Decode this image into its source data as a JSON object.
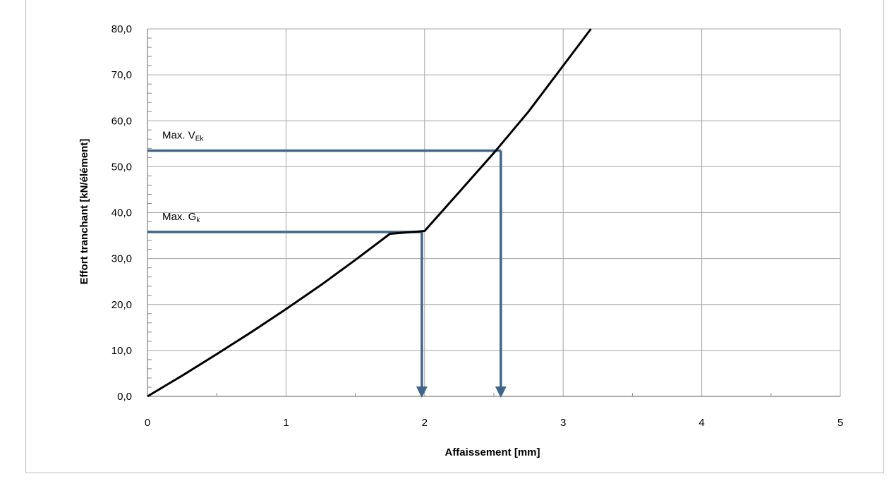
{
  "chart_data": {
    "type": "line",
    "title": "",
    "xlabel": "Affaissement [mm]",
    "ylabel": "Effort tranchant [kN/élément]",
    "xlim": [
      0,
      5
    ],
    "ylim": [
      0,
      80
    ],
    "x_ticks": [
      "0",
      "1",
      "2",
      "3",
      "4",
      "5"
    ],
    "y_ticks": [
      "0,0",
      "10,0",
      "20,0",
      "30,0",
      "40,0",
      "50,0",
      "60,0",
      "70,0",
      "80,0"
    ],
    "grid": true,
    "series": [
      {
        "color": "#000000",
        "x": [
          0,
          0.25,
          0.5,
          0.75,
          1.0,
          1.25,
          1.5,
          1.75,
          2.0,
          2.25,
          2.5,
          2.75,
          3.0,
          3.2
        ],
        "y": [
          0,
          4.5,
          9.2,
          14.0,
          19.0,
          24.2,
          29.7,
          35.4,
          36.0,
          44.5,
          53.0,
          62.0,
          72.0,
          80.0
        ]
      }
    ],
    "annotations": [
      {
        "label_main": "Max. G",
        "label_sub": "k",
        "y": 35.8,
        "x": 1.98,
        "color": "#41658a"
      },
      {
        "label_main": "Max. V",
        "label_sub": "Ek",
        "y": 53.5,
        "x": 2.55,
        "color": "#41658a"
      }
    ]
  }
}
